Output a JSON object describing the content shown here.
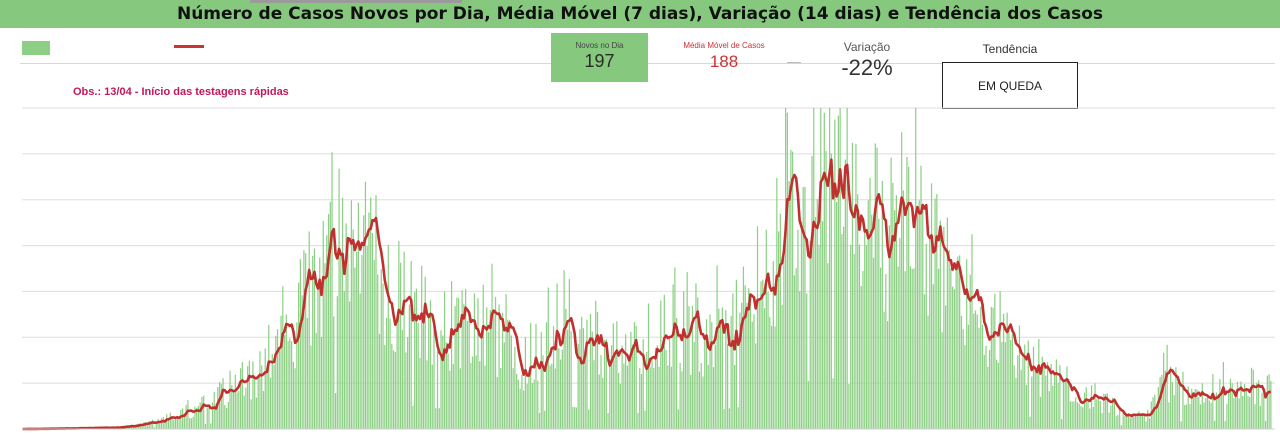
{
  "header": {
    "title": "Número de Casos Novos por Dia, Média Móvel (7 dias), Variação (14 dias) e Tendência dos Casos"
  },
  "note": "Obs.: 13/04 - Início das testagens rápidas",
  "kpis": {
    "novos": {
      "label": "Novos no Dia",
      "value": "197"
    },
    "media": {
      "label": "Média Móvel de Casos",
      "value": "188"
    },
    "variacao": {
      "label": "Variação",
      "value": "-22%"
    },
    "tendencia": {
      "label": "Tendência",
      "value": "EM QUEDA"
    }
  },
  "colors": {
    "bars": "#8dd085",
    "line": "#c0302f",
    "title_bg": "#86c97e"
  },
  "chart_data": {
    "type": "bar",
    "grid": true,
    "ylim": [
      0,
      700
    ],
    "series": [
      {
        "type": "bar"
      },
      {
        "type": "line"
      }
    ],
    "trend_keypoints": [
      [
        0,
        0
      ],
      [
        40,
        2
      ],
      [
        60,
        6
      ],
      [
        80,
        20
      ],
      [
        100,
        45
      ],
      [
        120,
        90
      ],
      [
        140,
        140
      ],
      [
        150,
        190
      ],
      [
        160,
        290
      ],
      [
        170,
        360
      ],
      [
        180,
        400
      ],
      [
        190,
        410
      ],
      [
        200,
        360
      ],
      [
        210,
        300
      ],
      [
        220,
        260
      ],
      [
        230,
        230
      ],
      [
        240,
        225
      ],
      [
        250,
        220
      ],
      [
        260,
        225
      ],
      [
        270,
        200
      ],
      [
        280,
        150
      ],
      [
        290,
        150
      ],
      [
        300,
        220
      ],
      [
        310,
        250
      ],
      [
        320,
        220
      ],
      [
        330,
        180
      ],
      [
        340,
        160
      ],
      [
        350,
        175
      ],
      [
        360,
        240
      ],
      [
        370,
        220
      ],
      [
        380,
        200
      ],
      [
        390,
        200
      ],
      [
        400,
        220
      ],
      [
        410,
        245
      ],
      [
        420,
        340
      ],
      [
        430,
        390
      ],
      [
        440,
        480
      ],
      [
        450,
        540
      ],
      [
        460,
        560
      ],
      [
        470,
        490
      ],
      [
        480,
        440
      ],
      [
        490,
        420
      ],
      [
        500,
        440
      ],
      [
        510,
        445
      ],
      [
        520,
        360
      ],
      [
        530,
        320
      ],
      [
        540,
        300
      ],
      [
        550,
        220
      ],
      [
        560,
        200
      ],
      [
        570,
        140
      ],
      [
        580,
        120
      ],
      [
        590,
        110
      ],
      [
        600,
        90
      ],
      [
        610,
        70
      ],
      [
        620,
        50
      ],
      [
        630,
        30
      ],
      [
        640,
        25
      ],
      [
        650,
        110
      ],
      [
        660,
        80
      ],
      [
        670,
        85
      ],
      [
        680,
        90
      ],
      [
        690,
        80
      ],
      [
        700,
        95
      ],
      [
        710,
        85
      ]
    ]
  }
}
